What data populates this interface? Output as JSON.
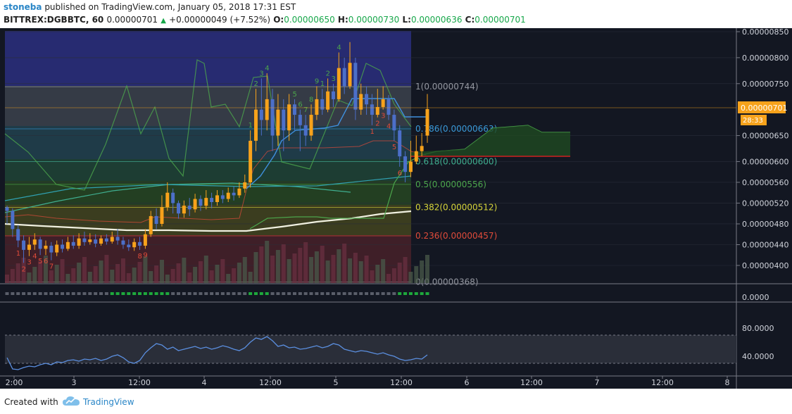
{
  "header": {
    "user": "stoneba",
    "published": " published on TradingView.com, January 05, 2018 17:31 EST",
    "symbol": "BITTREX:DGBBTC, 60",
    "last": "0.00000701",
    "change": "+0.00000049 (+7.52%)",
    "o_label": "O:",
    "o": "0.00000650",
    "h_label": "H:",
    "h": "0.00000730",
    "l_label": "L:",
    "l": "0.00000636",
    "c_label": "C:",
    "c": "0.00000701"
  },
  "footer": {
    "created": "Created with",
    "brand": "TradingView"
  },
  "colors": {
    "background": "#131722",
    "up": "#f7a21b",
    "down": "#4c6fc9",
    "ichimoku": "#4ca64c",
    "fib_top": "#2a2e7a"
  },
  "price_axis": {
    "ticks": [
      "0.00000850",
      "0.00000800",
      "0.00000750",
      "0.00000650",
      "0.00000600",
      "0.00000560",
      "0.00000520",
      "0.00000480",
      "0.00000440",
      "0.00000400"
    ],
    "current_price": "0.00000701",
    "countdown": "28:33",
    "volume_tick": "0.0000"
  },
  "rsi_axis": {
    "ticks": [
      "80.0000",
      "40.0000"
    ]
  },
  "time_axis": {
    "ticks": [
      "2:00",
      "3",
      "12:00",
      "4",
      "12:00",
      "5",
      "12:00",
      "6",
      "12:00",
      "7",
      "12:00",
      "8"
    ]
  },
  "fib_labels": [
    "1(0.00000744)",
    "0.786(0.00000663)",
    "0.618(0.00000600)",
    "0.5(0.00000556)",
    "0.382(0.00000512)",
    "0.236(0.00000457)",
    "0(0.00000368)"
  ],
  "chart_data": {
    "type": "candlestick",
    "symbol": "BITTREX:DGBBTC",
    "interval": "60",
    "ylim": [
      3.6e-06,
      8.6e-06
    ],
    "fib_levels": [
      {
        "ratio": 1,
        "price": 7.44e-06
      },
      {
        "ratio": 0.786,
        "price": 6.63e-06
      },
      {
        "ratio": 0.618,
        "price": 6e-06
      },
      {
        "ratio": 0.5,
        "price": 5.56e-06
      },
      {
        "ratio": 0.382,
        "price": 5.12e-06
      },
      {
        "ratio": 0.236,
        "price": 4.57e-06
      },
      {
        "ratio": 0,
        "price": 3.68e-06
      }
    ],
    "candles": [
      [
        5.12e-06,
        5.05e-06,
        5.15e-06,
        4.8e-06
      ],
      [
        5.05e-06,
        4.7e-06,
        5.1e-06,
        4.55e-06
      ],
      [
        4.7e-06,
        4.48e-06,
        4.78e-06,
        4.35e-06
      ],
      [
        4.48e-06,
        4.3e-06,
        4.58e-06,
        4.05e-06
      ],
      [
        4.3e-06,
        4.4e-06,
        4.55e-06,
        4.18e-06
      ],
      [
        4.4e-06,
        4.5e-06,
        4.62e-06,
        4.3e-06
      ],
      [
        4.5e-06,
        4.32e-06,
        4.55e-06,
        4.2e-06
      ],
      [
        4.32e-06,
        4.38e-06,
        4.48e-06,
        4.2e-06
      ],
      [
        4.38e-06,
        4.25e-06,
        4.45e-06,
        4.1e-06
      ],
      [
        4.25e-06,
        4.4e-06,
        4.48e-06,
        4.18e-06
      ],
      [
        4.4e-06,
        4.32e-06,
        4.5e-06,
        4.25e-06
      ],
      [
        4.32e-06,
        4.45e-06,
        4.55e-06,
        4.28e-06
      ],
      [
        4.45e-06,
        4.38e-06,
        4.58e-06,
        4.32e-06
      ],
      [
        4.38e-06,
        4.52e-06,
        4.62e-06,
        4.32e-06
      ],
      [
        4.52e-06,
        4.45e-06,
        4.65e-06,
        4.38e-06
      ],
      [
        4.45e-06,
        4.5e-06,
        4.62e-06,
        4.4e-06
      ],
      [
        4.5e-06,
        4.42e-06,
        4.6e-06,
        4.35e-06
      ],
      [
        4.42e-06,
        4.52e-06,
        4.58e-06,
        4.38e-06
      ],
      [
        4.52e-06,
        4.46e-06,
        4.6e-06,
        4.4e-06
      ],
      [
        4.46e-06,
        4.55e-06,
        4.65e-06,
        4.42e-06
      ],
      [
        4.55e-06,
        4.48e-06,
        4.7e-06,
        4.4e-06
      ],
      [
        4.48e-06,
        4.4e-06,
        4.55e-06,
        4.32e-06
      ],
      [
        4.4e-06,
        4.35e-06,
        4.5e-06,
        4.28e-06
      ],
      [
        4.35e-06,
        4.45e-06,
        4.52e-06,
        4.28e-06
      ],
      [
        4.45e-06,
        4.38e-06,
        4.55e-06,
        4.3e-06
      ],
      [
        4.38e-06,
        4.6e-06,
        4.7e-06,
        4.32e-06
      ],
      [
        4.6e-06,
        4.95e-06,
        5.05e-06,
        4.55e-06
      ],
      [
        4.95e-06,
        4.8e-06,
        5.1e-06,
        4.7e-06
      ],
      [
        4.8e-06,
        5.12e-06,
        5.35e-06,
        4.75e-06
      ],
      [
        5.12e-06,
        5.4e-06,
        5.6e-06,
        5.05e-06
      ],
      [
        5.4e-06,
        5.2e-06,
        5.48e-06,
        5e-06
      ],
      [
        5.2e-06,
        5e-06,
        5.25e-06,
        4.9e-06
      ],
      [
        5e-06,
        5.15e-06,
        5.25e-06,
        4.92e-06
      ],
      [
        5.15e-06,
        5.08e-06,
        5.3e-06,
        4.95e-06
      ],
      [
        5.08e-06,
        5.28e-06,
        5.38e-06,
        5.02e-06
      ],
      [
        5.28e-06,
        5.15e-06,
        5.35e-06,
        5.05e-06
      ],
      [
        5.15e-06,
        5.3e-06,
        5.45e-06,
        5.08e-06
      ],
      [
        5.3e-06,
        5.22e-06,
        5.4e-06,
        5.1e-06
      ],
      [
        5.22e-06,
        5.35e-06,
        5.45e-06,
        5.15e-06
      ],
      [
        5.35e-06,
        5.28e-06,
        5.45e-06,
        5.2e-06
      ],
      [
        5.28e-06,
        5.4e-06,
        5.5e-06,
        5.22e-06
      ],
      [
        5.4e-06,
        5.35e-06,
        5.52e-06,
        5.25e-06
      ],
      [
        5.35e-06,
        5.48e-06,
        5.6e-06,
        5.3e-06
      ],
      [
        5.48e-06,
        5.6e-06,
        5.75e-06,
        5.4e-06
      ],
      [
        5.6e-06,
        6.4e-06,
        6.6e-06,
        5.5e-06
      ],
      [
        6.4e-06,
        7e-06,
        7.4e-06,
        6.2e-06
      ],
      [
        7e-06,
        6.8e-06,
        7.6e-06,
        6.5e-06
      ],
      [
        6.8e-06,
        7.2e-06,
        7.7e-06,
        6.6e-06
      ],
      [
        7.2e-06,
        6.5e-06,
        7.4e-06,
        6.2e-06
      ],
      [
        6.5e-06,
        7e-06,
        7.3e-06,
        6.3e-06
      ],
      [
        7e-06,
        6.6e-06,
        7.2e-06,
        6.2e-06
      ],
      [
        6.6e-06,
        7.1e-06,
        7.3e-06,
        6.4e-06
      ],
      [
        7.1e-06,
        6.9e-06,
        7.2e-06,
        6.6e-06
      ],
      [
        6.9e-06,
        6.7e-06,
        7e-06,
        6.2e-06
      ],
      [
        6.7e-06,
        6.5e-06,
        6.9e-06,
        6.3e-06
      ],
      [
        6.5e-06,
        6.9e-06,
        7.1e-06,
        6.4e-06
      ],
      [
        6.9e-06,
        7.2e-06,
        7.45e-06,
        6.8e-06
      ],
      [
        7.2e-06,
        7e-06,
        7.4e-06,
        6.9e-06
      ],
      [
        7e-06,
        7.35e-06,
        7.6e-06,
        6.95e-06
      ],
      [
        7.35e-06,
        7.2e-06,
        7.5e-06,
        7.05e-06
      ],
      [
        7.2e-06,
        7.8e-06,
        8.1e-06,
        7.15e-06
      ],
      [
        7.8e-06,
        7.45e-06,
        8e-06,
        7.3e-06
      ],
      [
        7.45e-06,
        7.9e-06,
        8.3e-06,
        7.4e-06
      ],
      [
        7.9e-06,
        7e-06,
        8e-06,
        6.8e-06
      ],
      [
        7e-06,
        7.3e-06,
        7.5e-06,
        6.9e-06
      ],
      [
        7.3e-06,
        7.1e-06,
        7.45e-06,
        6.9e-06
      ],
      [
        7.1e-06,
        6.9e-06,
        7.3e-06,
        6.7e-06
      ],
      [
        6.9e-06,
        7.05e-06,
        7.4e-06,
        6.85e-06
      ],
      [
        7.05e-06,
        7.2e-06,
        7.45e-06,
        7e-06
      ],
      [
        7.2e-06,
        6.9e-06,
        7.28e-06,
        6.8e-06
      ],
      [
        6.9e-06,
        6.6e-06,
        7e-06,
        6.4e-06
      ],
      [
        6.6e-06,
        6.1e-06,
        6.7e-06,
        5.9e-06
      ],
      [
        6.1e-06,
        5.8e-06,
        6.2e-06,
        5.6e-06
      ],
      [
        5.8e-06,
        6e-06,
        6.4e-06,
        5.7e-06
      ],
      [
        6e-06,
        6.2e-06,
        6.5e-06,
        5.95e-06
      ],
      [
        6.2e-06,
        6.3e-06,
        6.55e-06,
        6.1e-06
      ],
      [
        6.5e-06,
        7.01e-06,
        7.3e-06,
        6.36e-06
      ]
    ],
    "candle_fields": [
      "open",
      "close",
      "high",
      "low"
    ],
    "rsi": [
      48,
      32,
      31,
      34,
      36,
      35,
      38,
      40,
      38,
      42,
      41,
      44,
      45,
      43,
      46,
      45,
      47,
      44,
      46,
      50,
      52,
      48,
      42,
      40,
      44,
      55,
      62,
      68,
      66,
      60,
      63,
      58,
      60,
      62,
      64,
      61,
      63,
      60,
      62,
      65,
      63,
      60,
      58,
      62,
      70,
      76,
      74,
      78,
      72,
      64,
      66,
      62,
      63,
      60,
      61,
      63,
      65,
      62,
      64,
      68,
      66,
      60,
      58,
      56,
      58,
      57,
      55,
      53,
      55,
      52,
      50,
      46,
      44,
      45,
      47,
      46,
      52
    ],
    "rsi_ylim": [
      20,
      95
    ]
  }
}
